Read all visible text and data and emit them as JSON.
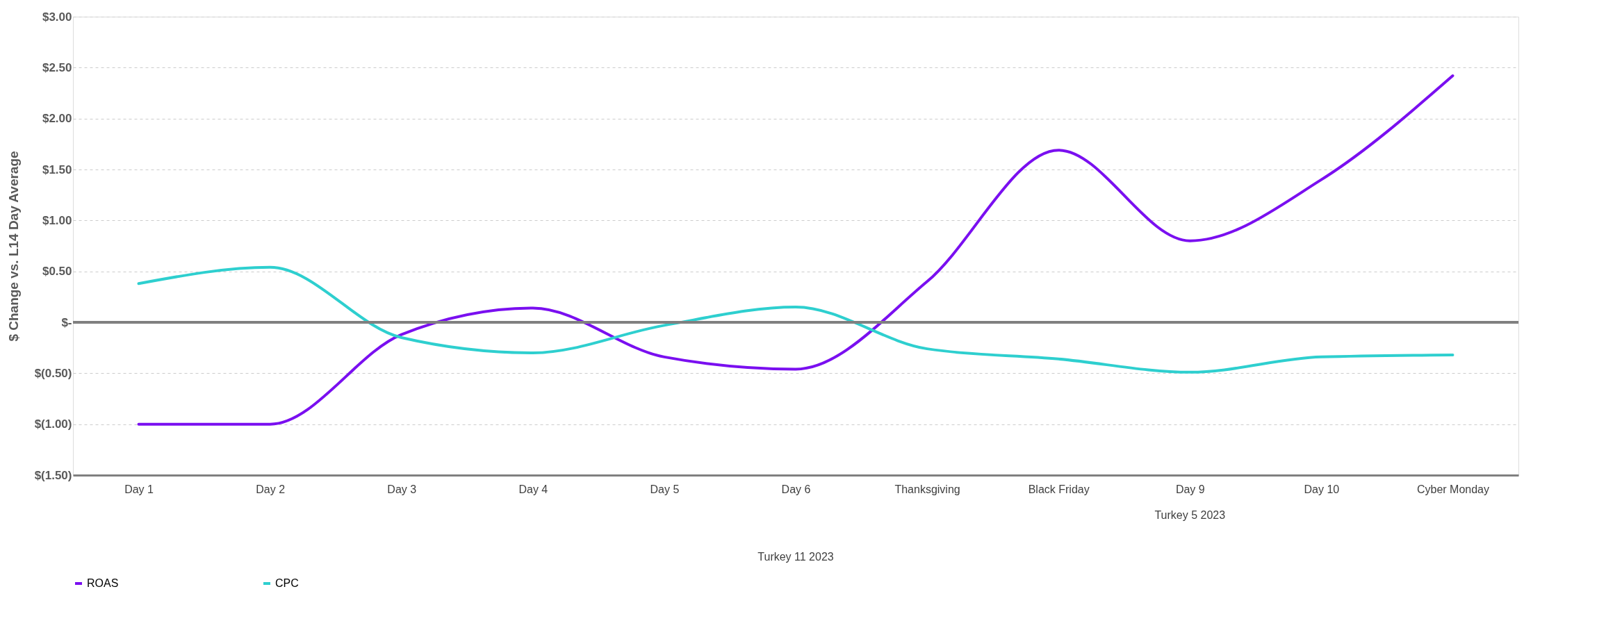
{
  "chart_data": {
    "type": "line",
    "ylabel": "$ Change vs. L14 Day Average",
    "categories": [
      "Day 1",
      "Day 2",
      "Day 3",
      "Day 4",
      "Day 5",
      "Day 6",
      "Thanksgiving",
      "Black Friday",
      "Day 9",
      "Day 10",
      "Cyber Monday"
    ],
    "series": [
      {
        "name": "ROAS",
        "color": "#7a0ff0",
        "values": [
          -1.0,
          -1.0,
          -0.12,
          0.14,
          -0.34,
          -0.46,
          0.4,
          1.69,
          0.8,
          1.4,
          2.42
        ]
      },
      {
        "name": "CPC",
        "color": "#2ecfcf",
        "values": [
          0.38,
          0.54,
          -0.15,
          -0.3,
          -0.03,
          0.15,
          -0.26,
          -0.36,
          -0.49,
          -0.34,
          -0.32
        ]
      }
    ],
    "ylim": [
      -1.5,
      3.0
    ],
    "yticks": [
      {
        "value": -1.5,
        "label": "$(1.50)"
      },
      {
        "value": -1.0,
        "label": "$(1.00)"
      },
      {
        "value": -0.5,
        "label": "$(0.50)"
      },
      {
        "value": 0,
        "label": "$-"
      },
      {
        "value": 0.5,
        "label": "$0.50"
      },
      {
        "value": 1.0,
        "label": "$1.00"
      },
      {
        "value": 1.5,
        "label": "$1.50"
      },
      {
        "value": 2.0,
        "label": "$2.00"
      },
      {
        "value": 2.5,
        "label": "$2.50"
      },
      {
        "value": 3.0,
        "label": "$3.00"
      }
    ],
    "ref_lines": [
      {
        "axis": "y",
        "value": 0,
        "color": "#808080"
      }
    ],
    "annotations": [
      "Turkey 5 2023",
      "Turkey 11 2023"
    ],
    "grid": "y",
    "legend": "bottom",
    "marker": "none",
    "line_style": "solid"
  }
}
